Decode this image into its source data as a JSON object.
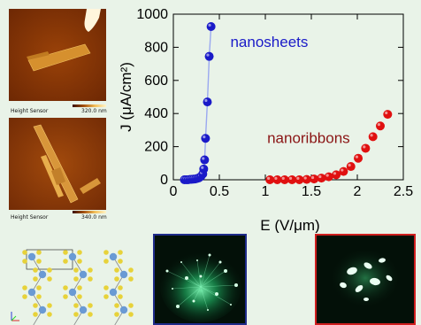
{
  "afm_top": {
    "label": "Height Sensor",
    "scale": "320.0 nm"
  },
  "afm_bottom": {
    "label": "Height Sensor",
    "scale": "340.0 nm"
  },
  "chart_data": {
    "type": "scatter",
    "xlabel": "E (V/μm)",
    "ylabel": "J (μA/cm²)",
    "xlim": [
      0,
      2.5
    ],
    "ylim": [
      0,
      1000
    ],
    "xticks": [
      "0",
      "0.5",
      "1",
      "1.5",
      "2",
      "2.5"
    ],
    "yticks": [
      "0",
      "200",
      "400",
      "600",
      "800",
      "1000"
    ],
    "grid": false,
    "series": [
      {
        "name": "nanosheets",
        "color": "#1a1ac8",
        "line": true,
        "x": [
          0.12,
          0.14,
          0.16,
          0.18,
          0.2,
          0.22,
          0.24,
          0.26,
          0.28,
          0.3,
          0.32,
          0.33,
          0.34,
          0.35,
          0.37,
          0.39,
          0.41
        ],
        "y": [
          0,
          0,
          0,
          2,
          3,
          4,
          5,
          8,
          12,
          20,
          35,
          65,
          120,
          250,
          470,
          745,
          925
        ]
      },
      {
        "name": "nanoribbons",
        "color": "#e01010",
        "line": false,
        "x": [
          1.05,
          1.13,
          1.21,
          1.29,
          1.37,
          1.45,
          1.53,
          1.61,
          1.69,
          1.77,
          1.85,
          1.93,
          2.01,
          2.09,
          2.17,
          2.25,
          2.33
        ],
        "y": [
          0,
          0,
          0,
          0,
          0,
          2,
          5,
          10,
          18,
          30,
          50,
          80,
          130,
          190,
          260,
          325,
          395
        ]
      }
    ]
  },
  "colors": {
    "nanosheets": "#1a1ac8",
    "nanoribbons": "#e01010"
  }
}
